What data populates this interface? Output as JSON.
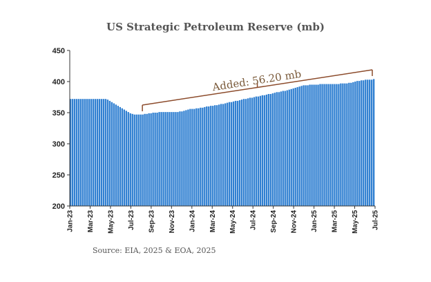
{
  "chart_data": {
    "type": "bar",
    "title": "US Strategic Petroleum Reserve (mb)",
    "source": "Source: EIA, 2025 & EOA, 2025",
    "xlabel": "",
    "ylabel": "",
    "ylim": [
      200,
      450
    ],
    "yticks": [
      200,
      250,
      300,
      350,
      400,
      450
    ],
    "x_tick_labels": [
      "Jan-23",
      "Mar-23",
      "May-23",
      "Jul-23",
      "Sep-23",
      "Nov-23",
      "Jan-24",
      "Mar-24",
      "May-24",
      "Jul-24",
      "Sep-24",
      "Nov-24",
      "Jan-25",
      "Mar-25",
      "May-25",
      "Jul-25"
    ],
    "x_start": "2023-01",
    "x_end": "2025-07",
    "annotation": {
      "text": "Added: 56.20 mb",
      "from": "2023-08",
      "to": "2025-07"
    },
    "values": [
      372,
      372,
      372,
      372,
      372,
      372,
      372,
      372,
      372,
      372,
      372,
      372,
      372,
      372,
      372,
      372,
      372,
      372,
      371,
      369,
      367,
      365,
      363,
      361,
      359,
      357,
      355,
      353,
      351,
      349,
      348,
      347,
      347,
      347,
      347,
      347,
      348,
      348,
      349,
      349,
      350,
      350,
      350,
      351,
      351,
      351,
      351,
      351,
      351,
      351,
      351,
      351,
      351,
      352,
      352,
      353,
      354,
      355,
      356,
      356,
      356,
      357,
      357,
      358,
      358,
      359,
      360,
      360,
      361,
      361,
      362,
      362,
      363,
      364,
      364,
      365,
      366,
      367,
      367,
      368,
      369,
      369,
      370,
      371,
      372,
      372,
      373,
      374,
      374,
      375,
      376,
      376,
      377,
      378,
      378,
      379,
      380,
      380,
      381,
      382,
      383,
      383,
      384,
      385,
      385,
      386,
      387,
      388,
      389,
      390,
      391,
      392,
      393,
      394,
      394,
      394,
      395,
      395,
      395,
      395,
      395,
      396,
      396,
      396,
      396,
      396,
      396,
      396,
      396,
      396,
      396,
      397,
      397,
      397,
      397,
      398,
      398,
      399,
      400,
      401,
      401,
      402,
      402,
      403,
      403,
      403,
      403,
      404
    ],
    "grid": false,
    "legend": "none",
    "bar_color": "#2f7fd1"
  }
}
